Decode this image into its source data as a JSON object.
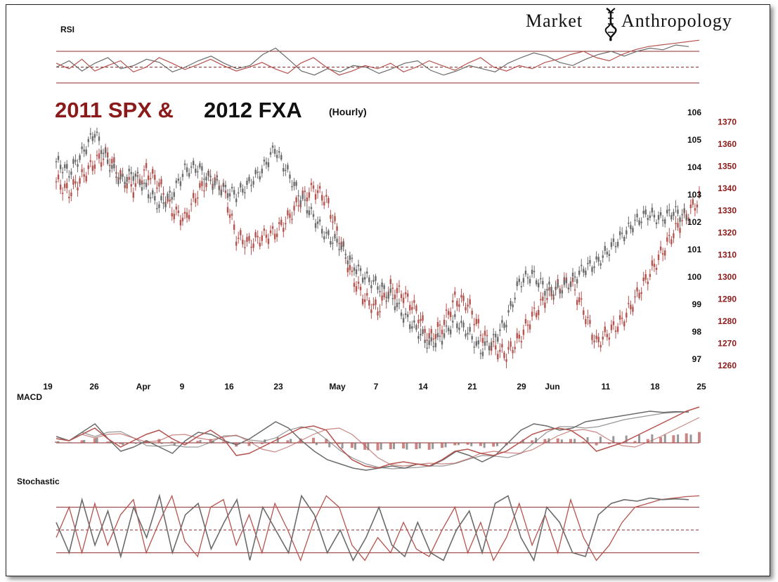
{
  "logo": {
    "word1": "Market",
    "word2": "Anthropology"
  },
  "title": {
    "part1": "2011 SPX &",
    "part2": "2012 FXA",
    "part3": "(Hourly)"
  },
  "panels": {
    "rsi": "RSI",
    "macd": "MACD",
    "stochastic": "Stochastic"
  },
  "colors": {
    "spx": "#b5534f",
    "fxa": "#6b6b6b",
    "guide": "#8b2a2a",
    "dark": "#111111",
    "red_label": "#8b1a1a"
  },
  "chart_data": {
    "type": "line",
    "title": "2011 SPX & 2012 FXA (Hourly)",
    "x_ticks": [
      "19",
      "26",
      "Apr",
      "9",
      "16",
      "23",
      "May",
      "7",
      "14",
      "21",
      "29",
      "Jun",
      "11",
      "18",
      "25"
    ],
    "fxa_axis": {
      "ticks": [
        106,
        105,
        104,
        103,
        102,
        101,
        100,
        99,
        98,
        97
      ],
      "ylim": [
        96.8,
        106.4
      ]
    },
    "spx_axis": {
      "ticks": [
        1370,
        1360,
        1350,
        1340,
        1330,
        1320,
        1310,
        1300,
        1290,
        1280,
        1270,
        1260
      ],
      "ylim": [
        1257,
        1373
      ]
    },
    "series": [
      {
        "name": "2011 SPX",
        "x": [
          0,
          0.02,
          0.04,
          0.06,
          0.08,
          0.1,
          0.12,
          0.14,
          0.16,
          0.18,
          0.2,
          0.22,
          0.24,
          0.26,
          0.28,
          0.3,
          0.32,
          0.34,
          0.36,
          0.38,
          0.4,
          0.42,
          0.44,
          0.46,
          0.48,
          0.5,
          0.52,
          0.54,
          0.56,
          0.58,
          0.6,
          0.62,
          0.64,
          0.66,
          0.68,
          0.7,
          0.72,
          0.74,
          0.76,
          0.78,
          0.8,
          0.82,
          0.84,
          0.86,
          0.88,
          0.9,
          0.92,
          0.94,
          0.96,
          0.98,
          1.0
        ],
        "values": [
          1343,
          1338,
          1345,
          1352,
          1355,
          1345,
          1340,
          1348,
          1342,
          1330,
          1326,
          1338,
          1345,
          1340,
          1318,
          1315,
          1318,
          1320,
          1326,
          1335,
          1340,
          1335,
          1318,
          1300,
          1290,
          1285,
          1295,
          1292,
          1285,
          1272,
          1278,
          1290,
          1288,
          1275,
          1268,
          1265,
          1272,
          1282,
          1290,
          1295,
          1298,
          1285,
          1270,
          1275,
          1280,
          1290,
          1300,
          1310,
          1320,
          1328,
          1335
        ]
      },
      {
        "name": "2012 FXA",
        "x": [
          0,
          0.02,
          0.04,
          0.06,
          0.08,
          0.1,
          0.12,
          0.14,
          0.16,
          0.18,
          0.2,
          0.22,
          0.24,
          0.26,
          0.28,
          0.3,
          0.32,
          0.34,
          0.36,
          0.38,
          0.4,
          0.42,
          0.44,
          0.46,
          0.48,
          0.5,
          0.52,
          0.54,
          0.56,
          0.58,
          0.6,
          0.62,
          0.64,
          0.66,
          0.68,
          0.7,
          0.72,
          0.74,
          0.76,
          0.78,
          0.8,
          0.82,
          0.84,
          0.86,
          0.88,
          0.9,
          0.92,
          0.94,
          0.96,
          0.98
        ],
        "values": [
          104.2,
          103.8,
          104.5,
          105.3,
          104.2,
          103.5,
          103.8,
          103.2,
          102.6,
          103.0,
          103.9,
          104.0,
          103.5,
          103.2,
          103.0,
          103.4,
          103.9,
          104.7,
          103.8,
          102.9,
          102.2,
          101.5,
          101.2,
          100.5,
          100.0,
          99.7,
          99.3,
          98.6,
          98.1,
          97.5,
          97.8,
          98.4,
          98.0,
          97.3,
          97.7,
          98.4,
          99.8,
          100.1,
          99.6,
          99.5,
          99.8,
          100.3,
          100.5,
          101.0,
          101.5,
          102.0,
          102.3,
          102.1,
          102.4,
          102.2
        ]
      }
    ],
    "rsi": {
      "spx": [
        55,
        48,
        60,
        45,
        52,
        58,
        44,
        50,
        62,
        55,
        47,
        53,
        60,
        52,
        45,
        50,
        56,
        48,
        42,
        55,
        62,
        50,
        40,
        45,
        52,
        48,
        55,
        44,
        50,
        58,
        52,
        46,
        55,
        62,
        50,
        45,
        52,
        48,
        56,
        60,
        66,
        70,
        62,
        58,
        66,
        72,
        76,
        78,
        80,
        82,
        84
      ],
      "fxa": [
        50,
        58,
        45,
        55,
        62,
        48,
        52,
        60,
        56,
        44,
        50,
        58,
        64,
        55,
        48,
        52,
        66,
        74,
        60,
        45,
        40,
        48,
        44,
        52,
        50,
        42,
        48,
        55,
        58,
        46,
        40,
        45,
        52,
        48,
        44,
        55,
        62,
        68,
        64,
        56,
        52,
        60,
        66,
        70,
        64,
        70,
        74,
        72,
        78,
        76
      ]
    },
    "macd": {
      "spx": [
        0.1,
        0.05,
        0.2,
        0.35,
        0.1,
        -0.1,
        0.05,
        0.2,
        0.3,
        0.1,
        -0.05,
        0.15,
        0.3,
        0.1,
        -0.3,
        -0.25,
        -0.1,
        0.05,
        0.2,
        0.35,
        0.4,
        0.3,
        -0.1,
        -0.4,
        -0.55,
        -0.6,
        -0.5,
        -0.45,
        -0.5,
        -0.55,
        -0.4,
        -0.2,
        -0.15,
        -0.25,
        -0.3,
        -0.2,
        0.0,
        0.2,
        0.3,
        0.35,
        0.3,
        0.1,
        -0.2,
        -0.1,
        0.0,
        0.15,
        0.3,
        0.45,
        0.6,
        0.75,
        0.85
      ],
      "fxa": [
        0.15,
        0.05,
        0.25,
        0.45,
        0.1,
        -0.2,
        -0.1,
        0.05,
        -0.1,
        -0.25,
        0.05,
        0.25,
        0.2,
        0.05,
        -0.05,
        0.1,
        0.3,
        0.5,
        0.35,
        0.05,
        -0.2,
        -0.4,
        -0.5,
        -0.6,
        -0.65,
        -0.6,
        -0.55,
        -0.6,
        -0.5,
        -0.55,
        -0.4,
        -0.2,
        -0.3,
        -0.45,
        -0.3,
        0.0,
        0.3,
        0.45,
        0.4,
        0.3,
        0.35,
        0.5,
        0.55,
        0.6,
        0.65,
        0.7,
        0.75,
        0.72,
        0.74,
        0.73
      ]
    },
    "stochastic": {
      "spx": [
        40,
        80,
        20,
        85,
        30,
        70,
        90,
        20,
        60,
        95,
        35,
        15,
        80,
        90,
        30,
        70,
        20,
        85,
        50,
        10,
        60,
        95,
        80,
        30,
        10,
        40,
        20,
        60,
        25,
        15,
        50,
        80,
        20,
        60,
        10,
        40,
        85,
        30,
        70,
        20,
        90,
        40,
        10,
        30,
        60,
        80,
        85,
        90,
        92,
        94,
        95
      ],
      "fxa": [
        60,
        20,
        90,
        30,
        75,
        15,
        80,
        40,
        95,
        20,
        70,
        85,
        25,
        60,
        90,
        10,
        80,
        50,
        20,
        95,
        70,
        20,
        50,
        10,
        40,
        80,
        30,
        15,
        60,
        20,
        10,
        50,
        75,
        20,
        85,
        95,
        40,
        10,
        80,
        60,
        20,
        15,
        70,
        85,
        90,
        88,
        92,
        90,
        91,
        90
      ]
    },
    "rsi_levels": [
      70,
      50,
      30
    ],
    "stochastic_levels": [
      80,
      50,
      20
    ],
    "grid": false
  }
}
